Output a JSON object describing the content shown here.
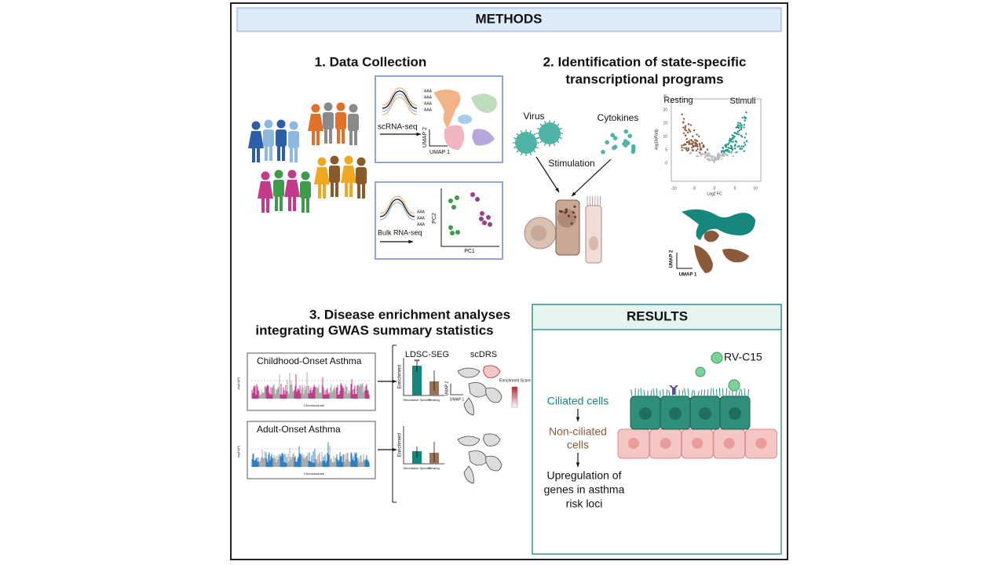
{
  "header": {
    "title": "METHODS"
  },
  "data_collection": {
    "title": "1.  Data Collection",
    "scrna": {
      "label": "scRNA-seq",
      "transcripts": [
        "AAA",
        "AAA",
        "AAA",
        "AAA"
      ],
      "y_axis": "UMAP 2",
      "x_axis": "UMAP 1"
    },
    "bulk": {
      "label": "Bulk RNA-seq",
      "transcripts": [
        "AAA",
        "AAA",
        "AAA"
      ],
      "y_axis": "PC2",
      "x_axis": "PC1"
    }
  },
  "identification": {
    "title": [
      "2. Identification of state-specific",
      "transcriptional programs"
    ],
    "virus": "Virus",
    "cytokines": "Cytokines",
    "stimulation": "Stimulation",
    "volcano": {
      "left_label": "Resting",
      "right_label": "Stimuli",
      "y_axis": "-log10(Padj)",
      "x_axis": "Log2 FC",
      "yticks": [
        25,
        20,
        15,
        10,
        5,
        0
      ],
      "xticks": [
        -10,
        -5,
        0,
        5,
        10
      ]
    },
    "umap": {
      "y_axis": "UMAP 2",
      "x_axis": "UMAP 1"
    }
  },
  "enrichment": {
    "title": [
      "3. Disease enrichment analyses",
      "integrating GWAS summary statistics"
    ],
    "ldsc": "LDSC-SEG",
    "scdrs": "scDRS",
    "panels": [
      {
        "name": "Childhood-Onset Asthma",
        "y_axis": "-log10(P)",
        "x_axis": "Chromosomes",
        "significance": "***",
        "bar_y_axis": "Enrichment",
        "bar_categories": [
          "Stimulation Specific",
          "Resting"
        ],
        "umap_y": "UMAP 2",
        "umap_x": "UMAP 1",
        "score_label": "Enrichment Score"
      },
      {
        "name": "Adult-Onset Asthma",
        "y_axis": "-log10(P)",
        "x_axis": "Chromosomes",
        "bar_y_axis": "Enrichment",
        "bar_categories": [
          "Stimulation Specific",
          "Resting"
        ]
      }
    ]
  },
  "results": {
    "title": "RESULTS",
    "virus": "RV-C15",
    "flow": [
      [
        "Ciliated cells"
      ],
      [
        "Non-ciliated",
        "cells"
      ],
      [
        "Upregulation of",
        "genes in asthma",
        "risk loci"
      ]
    ]
  }
}
